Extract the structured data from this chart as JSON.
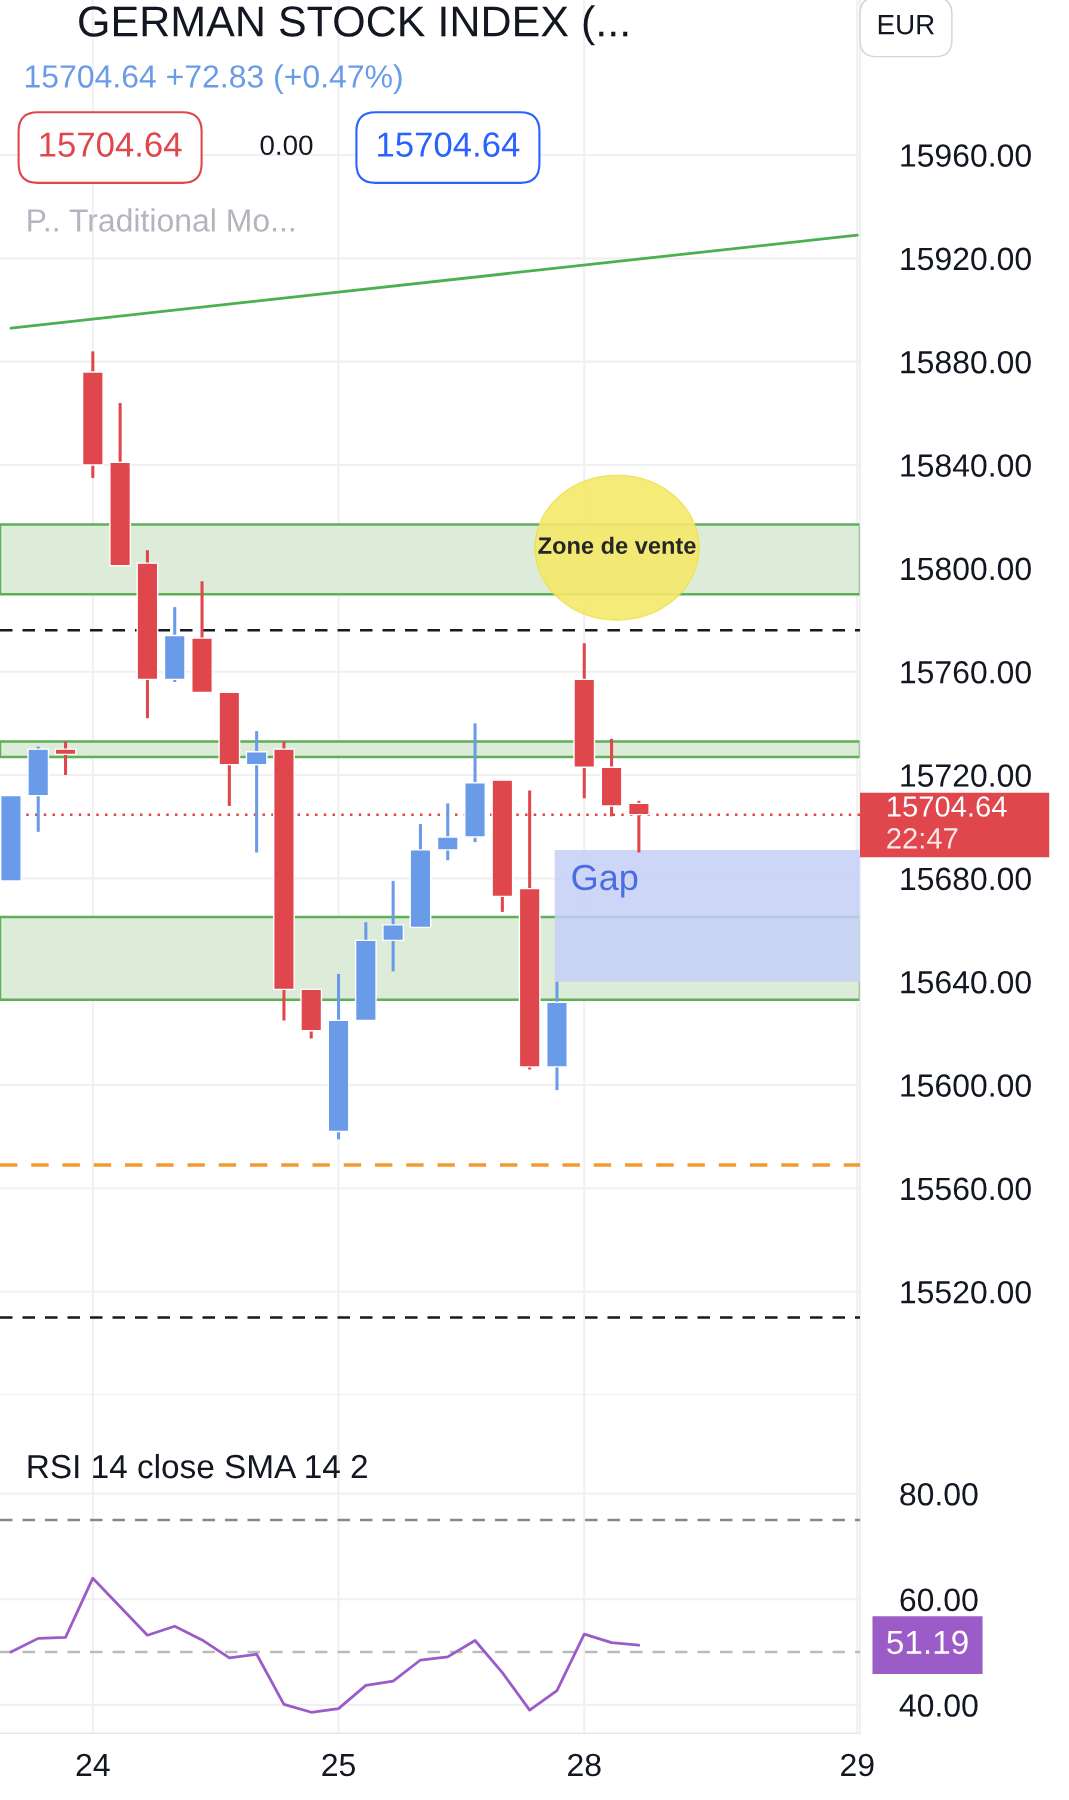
{
  "chart_data": [
    {
      "type": "candlestick",
      "title": "GERMAN STOCK INDEX (...",
      "categories": [
        null,
        null,
        null,
        "24",
        null,
        null,
        null,
        null,
        null,
        null,
        null,
        null,
        "25",
        null,
        null,
        null,
        null,
        null,
        null,
        null,
        null,
        "28",
        null,
        null,
        null,
        null,
        null,
        null,
        null,
        null,
        null,
        "29"
      ],
      "ohlc": [
        [
          15679,
          15712,
          15679,
          15712
        ],
        [
          15712,
          15731,
          15698,
          15730
        ],
        [
          15730,
          15733,
          15720,
          15728
        ],
        [
          15876,
          15884,
          15835,
          15840
        ],
        [
          15841,
          15864,
          15801,
          15801
        ],
        [
          15802,
          15807,
          15742,
          15757
        ],
        [
          15757,
          15785,
          15756,
          15774
        ],
        [
          15773,
          15795,
          15752,
          15752
        ],
        [
          15752,
          15752,
          15708,
          15724
        ],
        [
          15724,
          15737,
          15690,
          15729
        ],
        [
          15730,
          15733,
          15625,
          15637
        ],
        [
          15637,
          15637,
          15618,
          15621
        ],
        [
          15582,
          15643,
          15579,
          15625
        ],
        [
          15625,
          15663,
          15625,
          15656
        ],
        [
          15656,
          15679,
          15644,
          15662
        ],
        [
          15661,
          15701,
          15661,
          15691
        ],
        [
          15691,
          15709,
          15687,
          15696
        ],
        [
          15696,
          15740,
          15694,
          15717
        ],
        [
          15718,
          15718,
          15667,
          15673
        ],
        [
          15676,
          15714,
          15606,
          15607
        ],
        [
          15607,
          15640,
          15598,
          15632
        ],
        [
          15757,
          15771,
          15711,
          15723
        ],
        [
          15723,
          15734,
          15704,
          15708
        ],
        [
          15709,
          15710,
          15690,
          15704.64
        ],
        null,
        null,
        null,
        null,
        null,
        null,
        null,
        null
      ],
      "colors": [
        "#6a9be8",
        "#6a9be8",
        "#e0474c",
        "#e0474c",
        "#e0474c",
        "#e0474c",
        "#6a9be8",
        "#e0474c",
        "#e0474c",
        "#6a9be8",
        "#e0474c",
        "#e0474c",
        "#6a9be8",
        "#6a9be8",
        "#6a9be8",
        "#6a9be8",
        "#6a9be8",
        "#6a9be8",
        "#e0474c",
        "#e0474c",
        "#6a9be8",
        "#e0474c",
        "#e0474c",
        "#e0474c",
        null,
        null,
        null,
        null,
        null,
        null,
        null,
        null
      ],
      "series": [
        {
          "type": "line",
          "values": [
            15893,
            null,
            null,
            null,
            null,
            null,
            null,
            null,
            null,
            null,
            null,
            null,
            null,
            null,
            null,
            null,
            null,
            null,
            null,
            null,
            null,
            null,
            null,
            null,
            null,
            null,
            null,
            null,
            null,
            null,
            null,
            15929
          ],
          "color": "#4caf50"
        }
      ],
      "ylim": [
        15480,
        16020
      ],
      "yticks": [
        {
          "value": 15520,
          "label": "15520.00"
        },
        {
          "value": 15560,
          "label": "15560.00"
        },
        {
          "value": 15600,
          "label": "15600.00"
        },
        {
          "value": 15640,
          "label": "15640.00"
        },
        {
          "value": 15680,
          "label": "15680.00"
        },
        {
          "value": 15720,
          "label": "15720.00"
        },
        {
          "value": 15760,
          "label": "15760.00"
        },
        {
          "value": 15800,
          "label": "15800.00"
        },
        {
          "value": 15840,
          "label": "15840.00"
        },
        {
          "value": 15880,
          "label": "15880.00"
        },
        {
          "value": 15920,
          "label": "15920.00"
        },
        {
          "value": 15960,
          "label": "15960.00"
        }
      ],
      "tick_labels": "y",
      "grid": true,
      "bands": [
        {
          "axis": "y",
          "from": 15790,
          "to": 15817,
          "color": "#dcecd9"
        },
        {
          "axis": "y",
          "from": 15727,
          "to": 15733,
          "color": "#dcecd9"
        },
        {
          "axis": "y",
          "from": 15633,
          "to": 15665,
          "color": "#dcecd9"
        },
        {
          "axis": "y",
          "from": 15640,
          "to": 15691,
          "label": "Gap",
          "color": "#c5cff6"
        }
      ],
      "ref_lines": [
        {
          "axis": "y",
          "value": 15776,
          "color": "#1a1a1a",
          "line_style": "dashed"
        },
        {
          "axis": "y",
          "value": 15510,
          "color": "#1a1a1a",
          "line_style": "dashed"
        },
        {
          "axis": "y",
          "value": 15569,
          "color": "#f29a2e",
          "line_style": "dashed"
        },
        {
          "axis": "y",
          "value": 15704.64,
          "label": "15704.64",
          "color": "#e0474c",
          "line_style": "dotted"
        }
      ],
      "annotations": [
        "15704.64 +72.83 (+0.47%)",
        "15704.64",
        "0.00",
        "15704.64",
        "P.. Traditional Mo...",
        "EUR",
        "Zone de vente",
        "22:47"
      ]
    },
    {
      "type": "line",
      "title": "RSI 14 close SMA 14 2",
      "categories": [
        null,
        null,
        null,
        "24",
        null,
        null,
        null,
        null,
        null,
        null,
        null,
        null,
        "25",
        null,
        null,
        null,
        null,
        null,
        null,
        null,
        null,
        "28",
        null,
        null,
        null,
        null,
        null,
        null,
        null,
        null,
        null,
        "29"
      ],
      "values": [
        50.0,
        52.6,
        52.8,
        64.0,
        null,
        53.2,
        54.9,
        52.3,
        48.9,
        49.6,
        40.1,
        38.6,
        39.3,
        43.7,
        44.5,
        48.5,
        49.1,
        52.2,
        46.1,
        39.0,
        42.7,
        53.4,
        51.8,
        51.3,
        null,
        null,
        null,
        null,
        null,
        null,
        null,
        null
      ],
      "color": "#9c5cc8",
      "ylim": [
        34.6,
        98.7
      ],
      "yticks": [
        {
          "value": 40,
          "label": "40.00"
        },
        {
          "value": 60,
          "label": "60.00"
        },
        {
          "value": 80,
          "label": "80.00"
        }
      ],
      "grid": true,
      "ref_lines": [
        {
          "axis": "y",
          "value": 75,
          "color": "#888888",
          "line_style": "dashed"
        },
        {
          "axis": "y",
          "value": 50,
          "color": "#bbbbbb",
          "line_style": "dashed"
        }
      ],
      "annotations": [
        "51.19"
      ]
    }
  ]
}
